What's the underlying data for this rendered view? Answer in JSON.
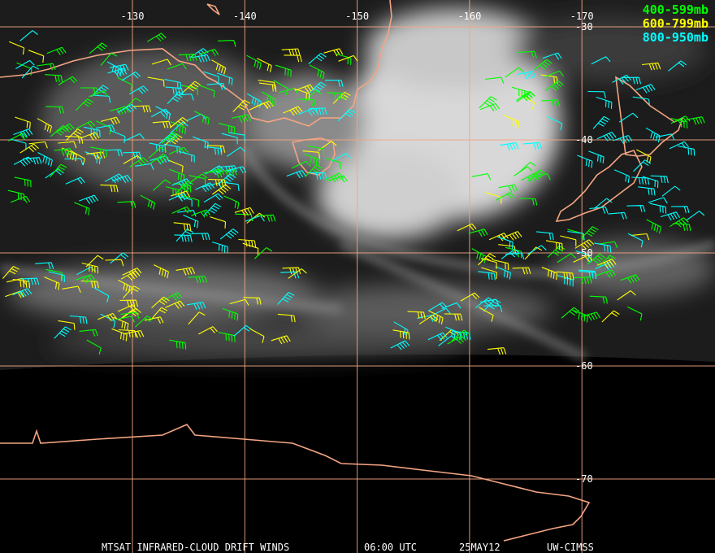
{
  "longitude_labels": [
    "-130",
    "-140",
    "-150",
    "-160",
    "-170"
  ],
  "latitude_labels": [
    "-30",
    "-40",
    "-50",
    "-60",
    "-70"
  ],
  "legend": [
    {
      "label": "400-599mb",
      "color": "#00ff00"
    },
    {
      "label": "600-799mb",
      "color": "#ffff00"
    },
    {
      "label": "800-950mb",
      "color": "#00ffff"
    }
  ],
  "footer": {
    "product": "MTSAT INFRARED-CLOUD DRIFT WINDS",
    "time": "06:00 UTC",
    "date": "25MAY12",
    "source": "UW-CIMSS"
  }
}
